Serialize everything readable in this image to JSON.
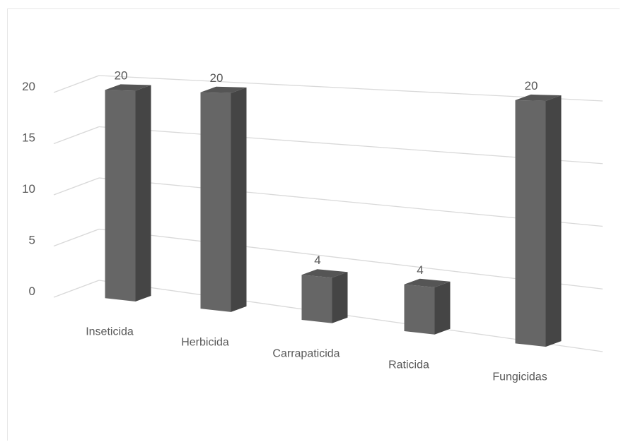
{
  "chart_data": {
    "type": "bar",
    "style": "3d-column",
    "categories": [
      "Inseticida",
      "Herbicida",
      "Carrapaticida",
      "Raticida",
      "Fungicidas"
    ],
    "values": [
      20,
      20,
      4,
      4,
      20
    ],
    "data_labels": [
      "20",
      "20",
      "4",
      "4",
      "20"
    ],
    "title": "",
    "xlabel": "",
    "ylabel": "",
    "ylim": [
      0,
      20
    ],
    "yticks": [
      0,
      5,
      10,
      15,
      20
    ],
    "ytick_labels": [
      "0",
      "5",
      "10",
      "15",
      "20"
    ],
    "grid": true,
    "legend": false,
    "colors": {
      "front": "#666666",
      "side": "#454545",
      "top": "#555555",
      "grid": "#d9d9d9",
      "text": "#595959"
    }
  }
}
